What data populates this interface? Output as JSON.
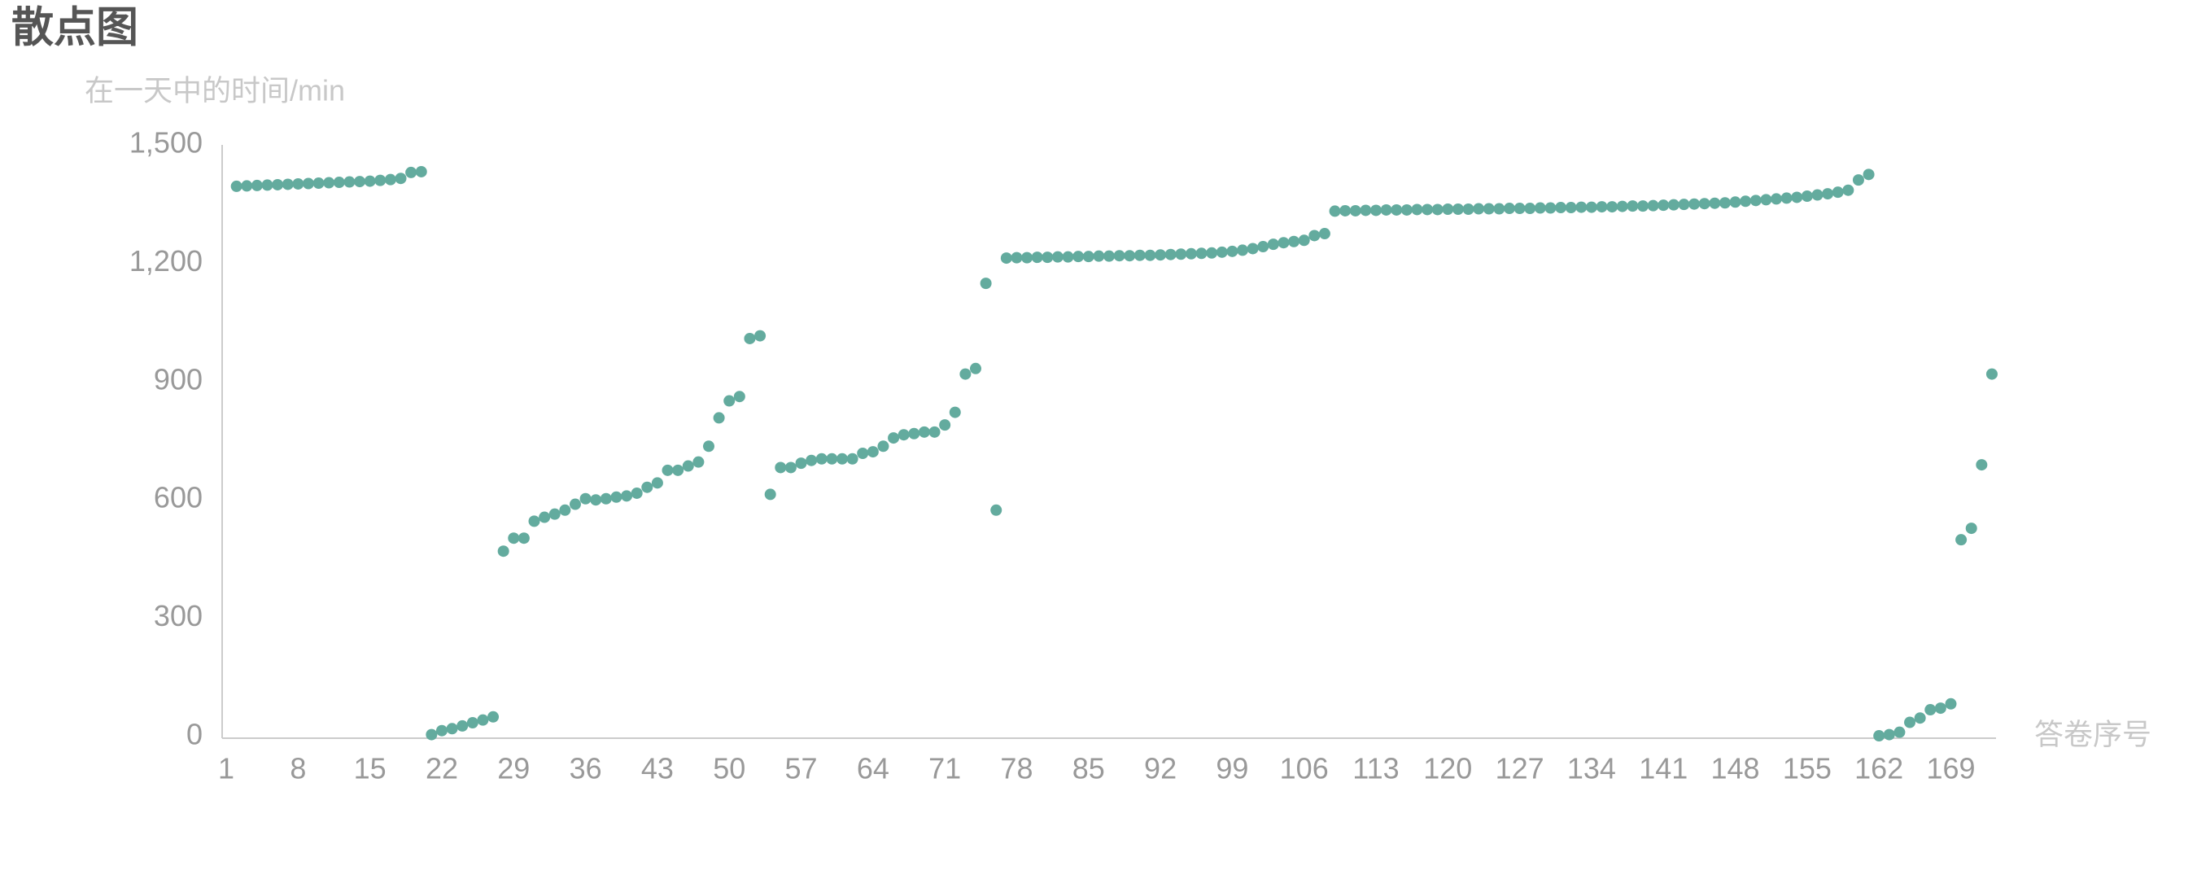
{
  "chart_data": {
    "type": "scatter",
    "title": "散点图",
    "y_label": "在一天中的时间/min",
    "x_label": "答卷序号",
    "color": "#63ab9e",
    "x": [
      2,
      3,
      4,
      5,
      6,
      7,
      8,
      9,
      10,
      11,
      12,
      13,
      14,
      15,
      16,
      17,
      18,
      19,
      20,
      21,
      22,
      23,
      24,
      25,
      26,
      27,
      28,
      29,
      30,
      31,
      32,
      33,
      34,
      35,
      36,
      37,
      38,
      39,
      40,
      41,
      42,
      43,
      44,
      45,
      46,
      47,
      48,
      49,
      50,
      51,
      52,
      53,
      54,
      55,
      56,
      57,
      58,
      59,
      60,
      61,
      62,
      63,
      64,
      65,
      66,
      67,
      68,
      69,
      70,
      71,
      72,
      73,
      74,
      75,
      76,
      77,
      78,
      79,
      80,
      81,
      82,
      83,
      84,
      85,
      86,
      87,
      88,
      89,
      90,
      91,
      92,
      93,
      94,
      95,
      96,
      97,
      98,
      99,
      100,
      101,
      102,
      103,
      104,
      105,
      106,
      107,
      108,
      109,
      110,
      111,
      112,
      113,
      114,
      115,
      116,
      117,
      118,
      119,
      120,
      121,
      122,
      123,
      124,
      125,
      126,
      127,
      128,
      129,
      130,
      131,
      132,
      133,
      134,
      135,
      136,
      137,
      138,
      139,
      140,
      141,
      142,
      143,
      144,
      145,
      146,
      147,
      148,
      149,
      150,
      151,
      152,
      153,
      154,
      155,
      156,
      157,
      158,
      159,
      160,
      161,
      162,
      163,
      164,
      165,
      166,
      167,
      168,
      169,
      170,
      171,
      172,
      173
    ],
    "values": [
      1395,
      1396,
      1397,
      1398,
      1399,
      1400,
      1401,
      1402,
      1403,
      1404,
      1405,
      1406,
      1407,
      1408,
      1410,
      1412,
      1415,
      1430,
      1432,
      5,
      15,
      20,
      27,
      35,
      42,
      50,
      470,
      503,
      503,
      546,
      556,
      564,
      574,
      589,
      603,
      600,
      603,
      607,
      610,
      617,
      632,
      643,
      675,
      675,
      686,
      696,
      736,
      808,
      851,
      862,
      1009,
      1016,
      614,
      682,
      682,
      693,
      700,
      704,
      704,
      704,
      704,
      718,
      722,
      736,
      757,
      765,
      768,
      772,
      772,
      790,
      822,
      919,
      933,
      1149,
      574,
      1213,
      1214,
      1214,
      1215,
      1215,
      1216,
      1216,
      1217,
      1217,
      1218,
      1218,
      1219,
      1219,
      1220,
      1220,
      1221,
      1222,
      1223,
      1224,
      1225,
      1226,
      1228,
      1230,
      1233,
      1237,
      1242,
      1248,
      1252,
      1255,
      1258,
      1270,
      1275,
      1332,
      1333,
      1333,
      1334,
      1334,
      1335,
      1335,
      1335,
      1336,
      1336,
      1336,
      1337,
      1337,
      1337,
      1338,
      1338,
      1338,
      1339,
      1339,
      1339,
      1340,
      1340,
      1341,
      1341,
      1342,
      1342,
      1343,
      1343,
      1344,
      1345,
      1345,
      1346,
      1347,
      1348,
      1349,
      1350,
      1351,
      1352,
      1353,
      1355,
      1357,
      1359,
      1361,
      1363,
      1365,
      1367,
      1370,
      1373,
      1376,
      1380,
      1385,
      1411,
      1425,
      2,
      5,
      11,
      36,
      47,
      68,
      72,
      83,
      499,
      528,
      689,
      919
    ],
    "xlim": [
      0.6,
      173.4
    ],
    "xticks": [
      1,
      8,
      15,
      22,
      29,
      36,
      43,
      50,
      57,
      64,
      71,
      78,
      85,
      92,
      99,
      106,
      113,
      120,
      127,
      134,
      141,
      148,
      155,
      162,
      169
    ],
    "ylim": [
      0,
      1500
    ],
    "yticks": [
      0,
      {
        "value": 300,
        "label": "300"
      },
      600,
      900,
      {
        "value": 1200,
        "label": "1,200"
      },
      {
        "value": 1500,
        "label": "1,500"
      }
    ],
    "grid": false
  }
}
